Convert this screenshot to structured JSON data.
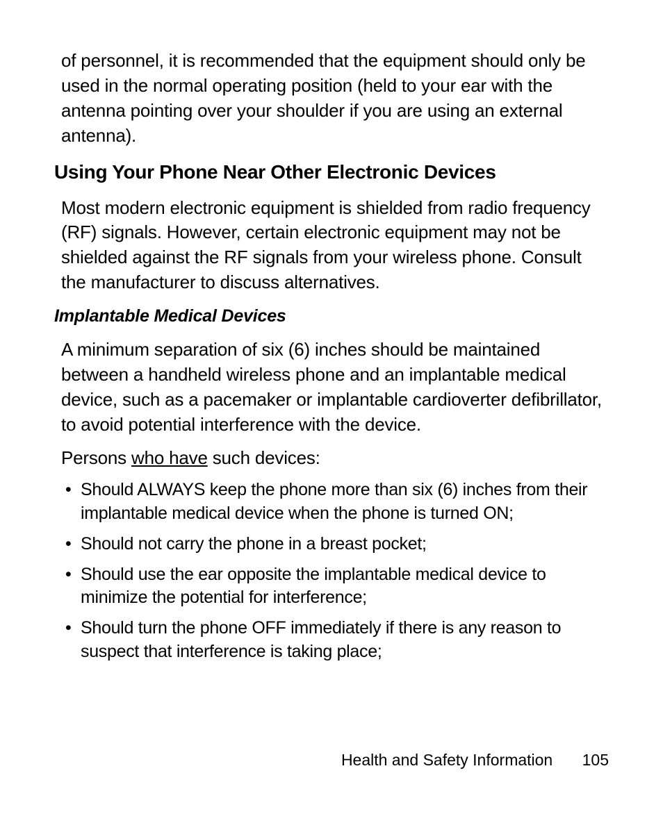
{
  "intro_para": "of personnel, it is recommended that the equipment should only be used in the normal operating position (held to your ear with the antenna pointing over your shoulder if you are using an external antenna).",
  "heading1": "Using Your Phone Near Other Electronic Devices",
  "para1": "Most modern electronic equipment is shielded from radio frequency (RF) signals. However, certain electronic equipment may not be shielded against the RF signals from your wireless phone. Consult the manufacturer to discuss alternatives.",
  "heading2": "Implantable Medical Devices",
  "para2": "A minimum separation of six (6) inches should be maintained between a handheld wireless phone and an implantable medical device, such as a pacemaker or implantable cardioverter defibrillator, to avoid potential interference with the device.",
  "para3_pre": "Persons ",
  "para3_underline": "who have",
  "para3_post": " such devices:",
  "bullets": [
    "Should ALWAYS keep the phone more than six (6) inches from their implantable medical device when the phone is turned ON;",
    "Should not carry the phone in a breast pocket;",
    "Should use the ear opposite the implantable medical device to minimize the potential for interference;",
    "Should turn the phone OFF immediately if there is any reason to suspect that interference is taking place;"
  ],
  "footer_text": "Health and Safety Information",
  "page_number": "105",
  "colors": {
    "background": "#ffffff",
    "text": "#000000"
  },
  "typography": {
    "body_fontsize": 26,
    "heading_fontsize": 28,
    "subheading_fontsize": 25,
    "bullet_fontsize": 25,
    "footer_fontsize": 23
  }
}
